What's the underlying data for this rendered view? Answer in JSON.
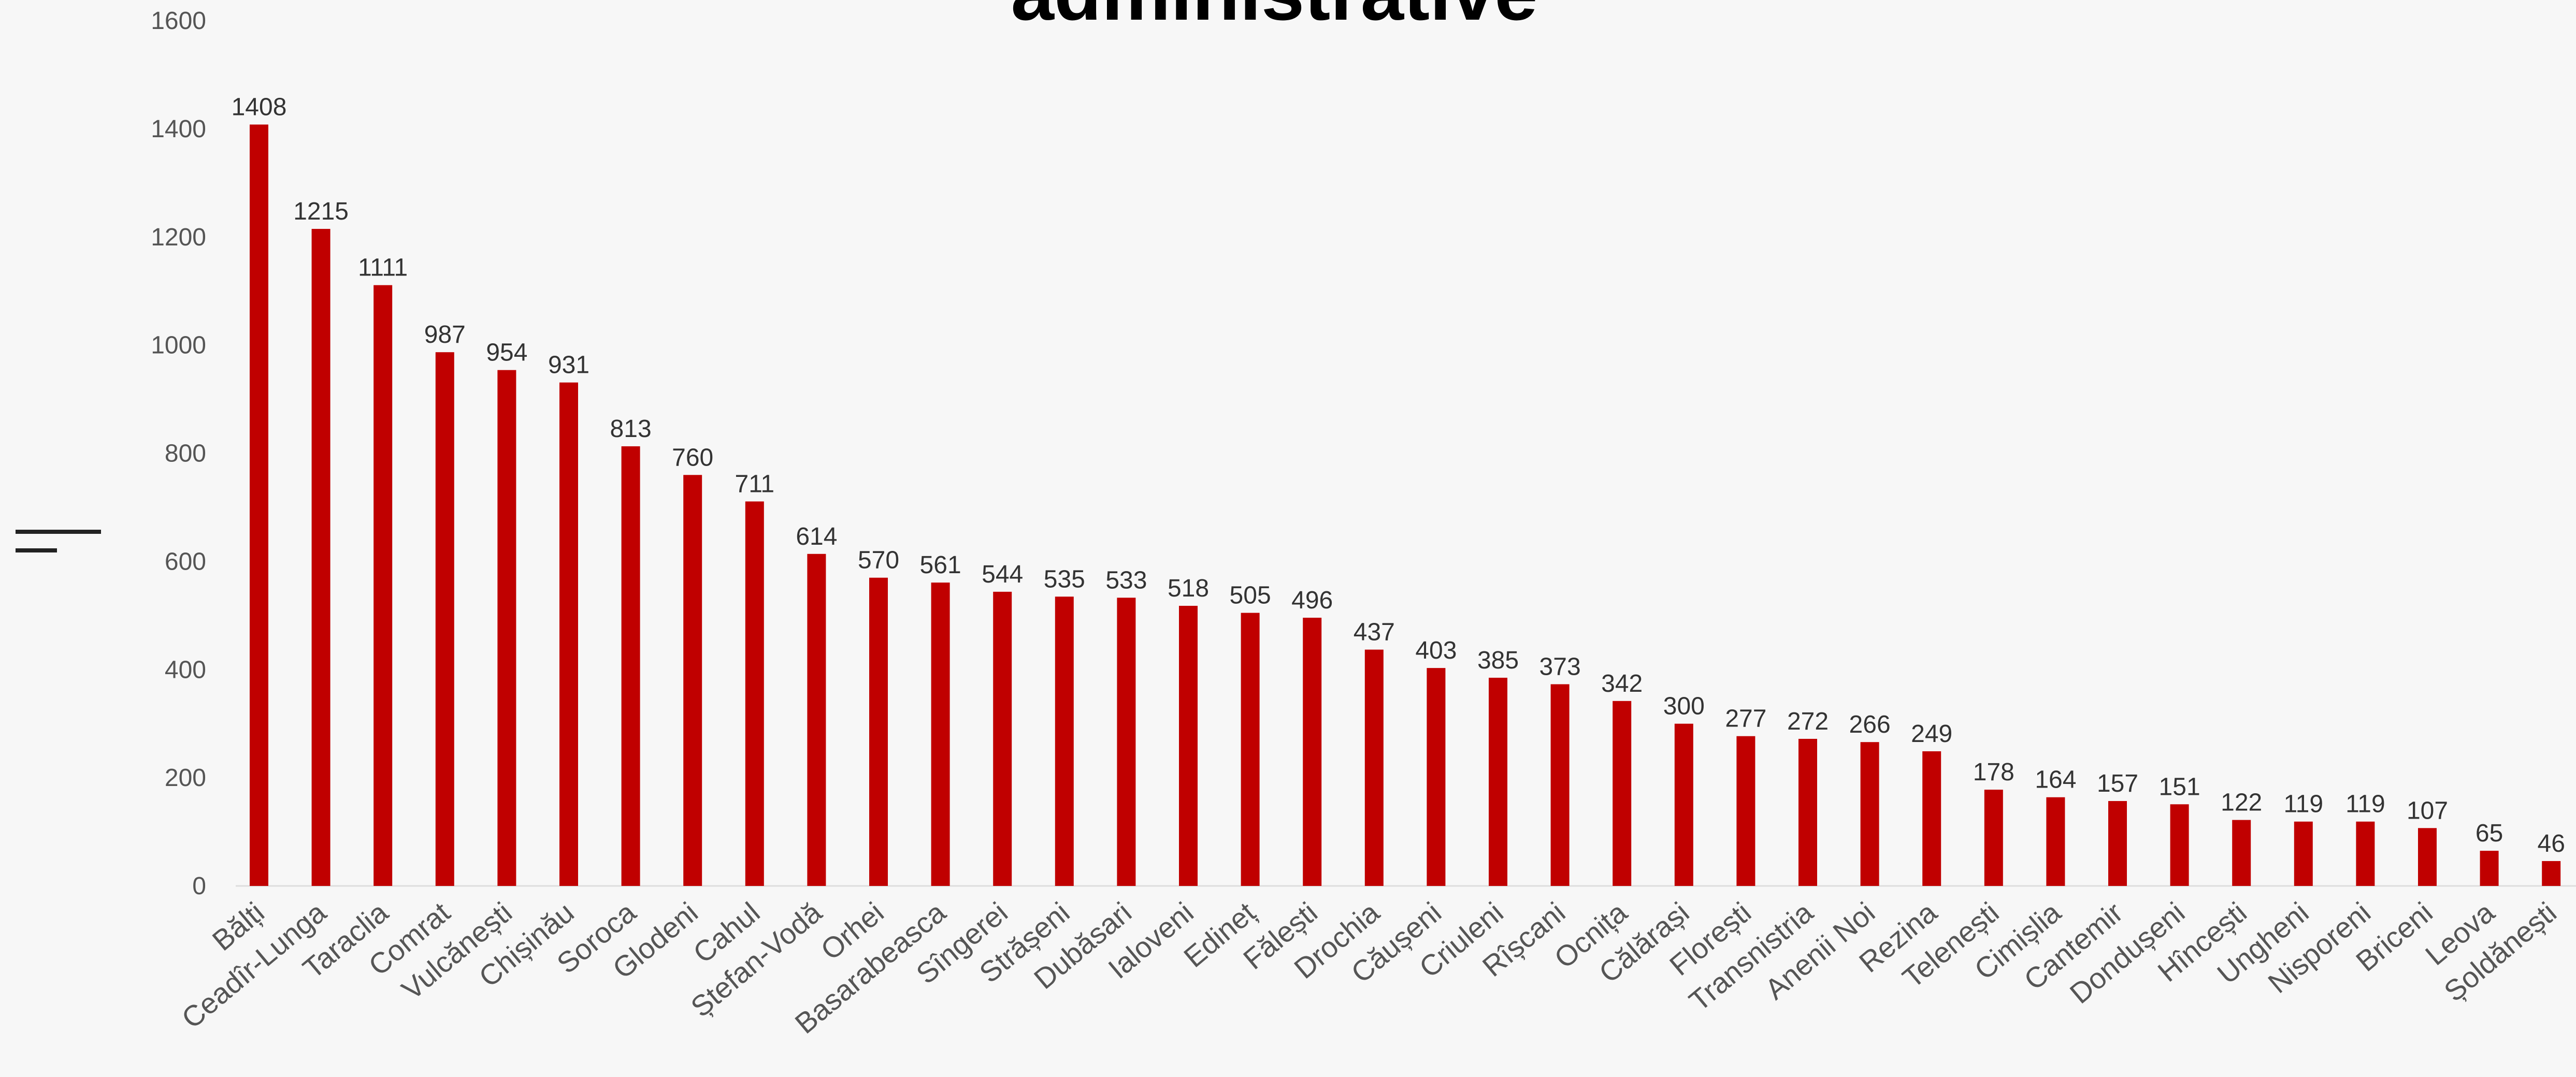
{
  "colors": {
    "bar": "#c00000",
    "background": "#f7f7f7",
    "title": "#000000",
    "tick_text": "#555555",
    "value_text": "#333333",
    "menu_icon": "#222222"
  },
  "menu_icon": "menu-icon",
  "chart_data": {
    "type": "bar",
    "title": "administrative",
    "xlabel": "",
    "ylabel": "",
    "ylim": [
      0,
      1600
    ],
    "yticks": [
      0,
      200,
      400,
      600,
      800,
      1000,
      1200,
      1400,
      1600
    ],
    "grid": false,
    "legend": "none",
    "categories": [
      "Bălți",
      "Ceadîr-Lunga",
      "Taraclia",
      "Comrat",
      "Vulcănești",
      "Chișinău",
      "Soroca",
      "Glodeni",
      "Cahul",
      "Ștefan-Vodă",
      "Orhei",
      "Basarabeasca",
      "Sîngerei",
      "Strășeni",
      "Dubăsari",
      "Ialoveni",
      "Edineț",
      "Fălești",
      "Drochia",
      "Căușeni",
      "Criuleni",
      "Rîșcani",
      "Ocnița",
      "Călărași",
      "Florești",
      "Transnistria",
      "Anenii Noi",
      "Rezina",
      "Telenești",
      "Cimișlia",
      "Cantemir",
      "Dondușeni",
      "Hîncești",
      "Ungheni",
      "Nisporeni",
      "Briceni",
      "Leova",
      "Șoldănești"
    ],
    "values": [
      1408,
      1215,
      1111,
      987,
      954,
      931,
      813,
      760,
      711,
      614,
      570,
      561,
      544,
      535,
      533,
      518,
      505,
      496,
      437,
      403,
      385,
      373,
      342,
      300,
      277,
      272,
      266,
      249,
      178,
      164,
      157,
      151,
      122,
      119,
      119,
      107,
      65,
      46
    ],
    "value_labels": [
      "1408",
      "1215",
      "1111",
      "987",
      "954",
      "931",
      "813",
      "760",
      "711",
      "614",
      "570",
      "561",
      "544",
      "535",
      "533",
      "518",
      "505",
      "496",
      "437",
      "403",
      "385",
      "373",
      "342",
      "300",
      "277",
      "272",
      "266",
      "249",
      "178",
      "164",
      "157",
      "151",
      "122",
      "119",
      "119",
      "107",
      "65",
      "46"
    ]
  }
}
